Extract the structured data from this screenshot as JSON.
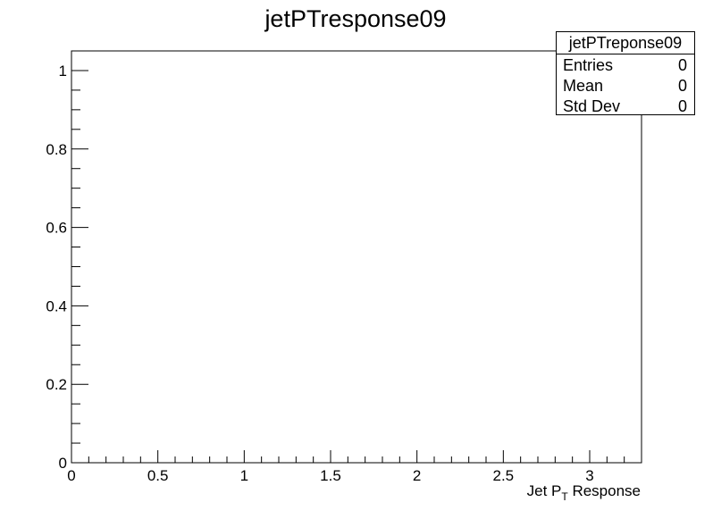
{
  "window": {
    "title": "jetPTresponse09"
  },
  "stats_box": {
    "title": "jetPTreponse09",
    "rows": [
      {
        "label": "Entries",
        "value": "0"
      },
      {
        "label": "Mean",
        "value": "0"
      },
      {
        "label": "Std Dev",
        "value": "0"
      }
    ]
  },
  "chart_data": {
    "type": "bar",
    "title": "jetPTresponse09",
    "xlabel": "Jet P_T Response",
    "xlabel_main": "Jet P",
    "xlabel_sub": "T",
    "xlabel_tail": " Response",
    "ylabel": "",
    "xlim": [
      0,
      3.3
    ],
    "ylim": [
      0,
      1.05
    ],
    "x_ticks": [
      0,
      0.5,
      1,
      1.5,
      2,
      2.5,
      3
    ],
    "x_tick_labels": [
      "0",
      "0.5",
      "1",
      "1.5",
      "2",
      "2.5",
      "3"
    ],
    "y_ticks": [
      0,
      0.2,
      0.4,
      0.6,
      0.8,
      1
    ],
    "y_tick_labels": [
      "0",
      "0.2",
      "0.4",
      "0.6",
      "0.8",
      "1"
    ],
    "x_minor_step": 0.1,
    "y_minor_step": 0.05,
    "series": [
      {
        "values": []
      }
    ],
    "grid": false,
    "legend": "top-right"
  }
}
